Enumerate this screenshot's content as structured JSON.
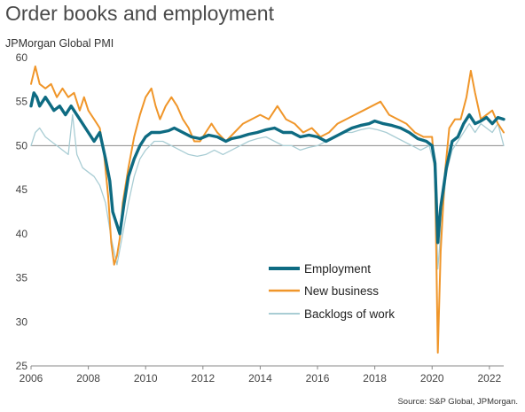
{
  "title": "Order books and employment",
  "subtitle": "JPMorgan Global PMI",
  "source": "Source: S&P Global, JPMorgan.",
  "colors": {
    "employment": "#0e6b82",
    "new_business": "#f0962a",
    "backlogs": "#a9cdd4",
    "reference": "#8c8c8c",
    "axis": "#888888"
  },
  "chart_data": {
    "type": "line",
    "title": "Order books and employment",
    "subtitle": "JPMorgan Global PMI",
    "xlim": [
      2006,
      2022.5
    ],
    "ylim": [
      25,
      60
    ],
    "xticks": [
      2006,
      2008,
      2010,
      2012,
      2014,
      2016,
      2018,
      2020,
      2022
    ],
    "yticks": [
      25,
      30,
      35,
      40,
      45,
      50,
      55,
      60
    ],
    "reference_line": 50,
    "grid": false,
    "legend": "center-right",
    "series": [
      {
        "name": "Employment",
        "x": [
          2006.0,
          2006.1,
          2006.2,
          2006.3,
          2006.5,
          2006.8,
          2007.0,
          2007.2,
          2007.4,
          2007.7,
          2008.0,
          2008.2,
          2008.4,
          2008.6,
          2008.75,
          2008.85,
          2008.95,
          2009.1,
          2009.25,
          2009.4,
          2009.6,
          2009.8,
          2010.0,
          2010.2,
          2010.5,
          2010.8,
          2011.0,
          2011.3,
          2011.6,
          2011.9,
          2012.2,
          2012.5,
          2012.8,
          2013.0,
          2013.3,
          2013.6,
          2013.9,
          2014.2,
          2014.5,
          2014.8,
          2015.1,
          2015.4,
          2015.7,
          2016.0,
          2016.3,
          2016.6,
          2016.9,
          2017.2,
          2017.5,
          2017.8,
          2018.0,
          2018.3,
          2018.6,
          2018.9,
          2019.2,
          2019.5,
          2019.8,
          2020.0,
          2020.1,
          2020.2,
          2020.3,
          2020.5,
          2020.7,
          2020.9,
          2021.1,
          2021.3,
          2021.5,
          2021.7,
          2021.9,
          2022.1,
          2022.3,
          2022.5
        ],
        "values": [
          54.5,
          56.0,
          55.5,
          54.5,
          55.5,
          54.0,
          54.5,
          53.5,
          54.5,
          53.0,
          51.5,
          50.5,
          51.5,
          48.5,
          46.0,
          42.5,
          41.5,
          40.0,
          43.5,
          46.5,
          48.5,
          50.0,
          51.0,
          51.5,
          51.5,
          51.7,
          52.0,
          51.5,
          51.0,
          50.8,
          51.2,
          51.0,
          50.5,
          50.8,
          51.0,
          51.3,
          51.5,
          51.8,
          52.0,
          51.5,
          51.5,
          51.0,
          51.2,
          51.0,
          50.5,
          51.0,
          51.5,
          52.0,
          52.3,
          52.5,
          52.8,
          52.5,
          52.3,
          52.0,
          51.5,
          50.8,
          50.5,
          50.0,
          48.0,
          39.0,
          43.0,
          47.5,
          50.5,
          51.0,
          52.5,
          53.5,
          52.5,
          52.8,
          53.2,
          52.5,
          53.2,
          53.0
        ]
      },
      {
        "name": "New business",
        "x": [
          2006.0,
          2006.15,
          2006.3,
          2006.5,
          2006.7,
          2006.9,
          2007.1,
          2007.3,
          2007.5,
          2007.7,
          2007.85,
          2008.0,
          2008.2,
          2008.4,
          2008.55,
          2008.7,
          2008.8,
          2008.9,
          2009.0,
          2009.1,
          2009.2,
          2009.4,
          2009.6,
          2009.8,
          2010.0,
          2010.2,
          2010.35,
          2010.5,
          2010.7,
          2010.9,
          2011.1,
          2011.3,
          2011.5,
          2011.7,
          2011.9,
          2012.1,
          2012.3,
          2012.5,
          2012.8,
          2013.1,
          2013.4,
          2013.7,
          2014.0,
          2014.3,
          2014.6,
          2014.9,
          2015.2,
          2015.5,
          2015.8,
          2016.1,
          2016.4,
          2016.7,
          2017.0,
          2017.3,
          2017.6,
          2017.9,
          2018.2,
          2018.5,
          2018.8,
          2019.1,
          2019.4,
          2019.7,
          2020.0,
          2020.1,
          2020.2,
          2020.3,
          2020.45,
          2020.6,
          2020.8,
          2021.0,
          2021.2,
          2021.35,
          2021.5,
          2021.7,
          2021.9,
          2022.1,
          2022.3,
          2022.5
        ],
        "values": [
          57.0,
          59.0,
          57.0,
          56.5,
          57.0,
          55.5,
          56.5,
          55.5,
          56.0,
          54.0,
          55.5,
          54.0,
          53.0,
          52.0,
          49.0,
          44.0,
          39.0,
          36.5,
          37.5,
          39.5,
          43.5,
          47.5,
          51.0,
          53.5,
          55.5,
          56.5,
          54.5,
          53.0,
          54.5,
          55.5,
          54.5,
          53.0,
          52.0,
          50.5,
          50.5,
          51.5,
          52.5,
          51.5,
          50.5,
          51.5,
          52.5,
          53.0,
          53.5,
          53.0,
          54.5,
          53.0,
          52.5,
          51.5,
          52.0,
          51.0,
          51.5,
          52.5,
          53.0,
          53.5,
          54.0,
          54.5,
          55.0,
          53.5,
          53.0,
          52.5,
          51.5,
          51.0,
          51.0,
          47.0,
          26.5,
          38.0,
          47.0,
          52.0,
          53.0,
          53.0,
          55.5,
          58.5,
          56.0,
          53.0,
          53.5,
          54.0,
          52.5,
          51.5
        ]
      },
      {
        "name": "Backlogs of work",
        "x": [
          2006.0,
          2006.15,
          2006.3,
          2006.5,
          2006.7,
          2006.9,
          2007.1,
          2007.3,
          2007.45,
          2007.6,
          2007.8,
          2008.0,
          2008.2,
          2008.4,
          2008.6,
          2008.8,
          2009.0,
          2009.2,
          2009.4,
          2009.6,
          2009.8,
          2010.0,
          2010.3,
          2010.6,
          2010.9,
          2011.2,
          2011.5,
          2011.8,
          2012.1,
          2012.4,
          2012.7,
          2013.0,
          2013.3,
          2013.6,
          2013.9,
          2014.2,
          2014.5,
          2014.8,
          2015.1,
          2015.4,
          2015.7,
          2016.0,
          2016.3,
          2016.6,
          2016.9,
          2017.2,
          2017.5,
          2017.8,
          2018.1,
          2018.4,
          2018.7,
          2019.0,
          2019.3,
          2019.6,
          2019.9,
          2020.1,
          2020.2,
          2020.3,
          2020.5,
          2020.7,
          2020.9,
          2021.1,
          2021.3,
          2021.5,
          2021.7,
          2021.9,
          2022.1,
          2022.3,
          2022.5
        ],
        "values": [
          50.0,
          51.5,
          52.0,
          51.0,
          50.5,
          50.0,
          49.5,
          49.0,
          53.5,
          49.0,
          47.5,
          47.0,
          46.5,
          45.5,
          43.5,
          39.5,
          36.5,
          40.0,
          43.5,
          46.5,
          48.5,
          49.5,
          50.5,
          50.5,
          50.0,
          49.5,
          49.0,
          48.8,
          49.0,
          49.5,
          49.0,
          49.5,
          50.0,
          50.5,
          50.8,
          51.0,
          50.5,
          50.0,
          50.0,
          49.5,
          49.8,
          50.0,
          50.5,
          51.0,
          51.5,
          51.5,
          51.8,
          52.0,
          51.8,
          51.5,
          51.0,
          50.5,
          50.0,
          49.5,
          50.0,
          47.5,
          36.0,
          40.0,
          47.0,
          49.5,
          50.5,
          51.5,
          52.5,
          51.5,
          52.5,
          52.0,
          51.5,
          52.5,
          50.0
        ]
      }
    ]
  }
}
